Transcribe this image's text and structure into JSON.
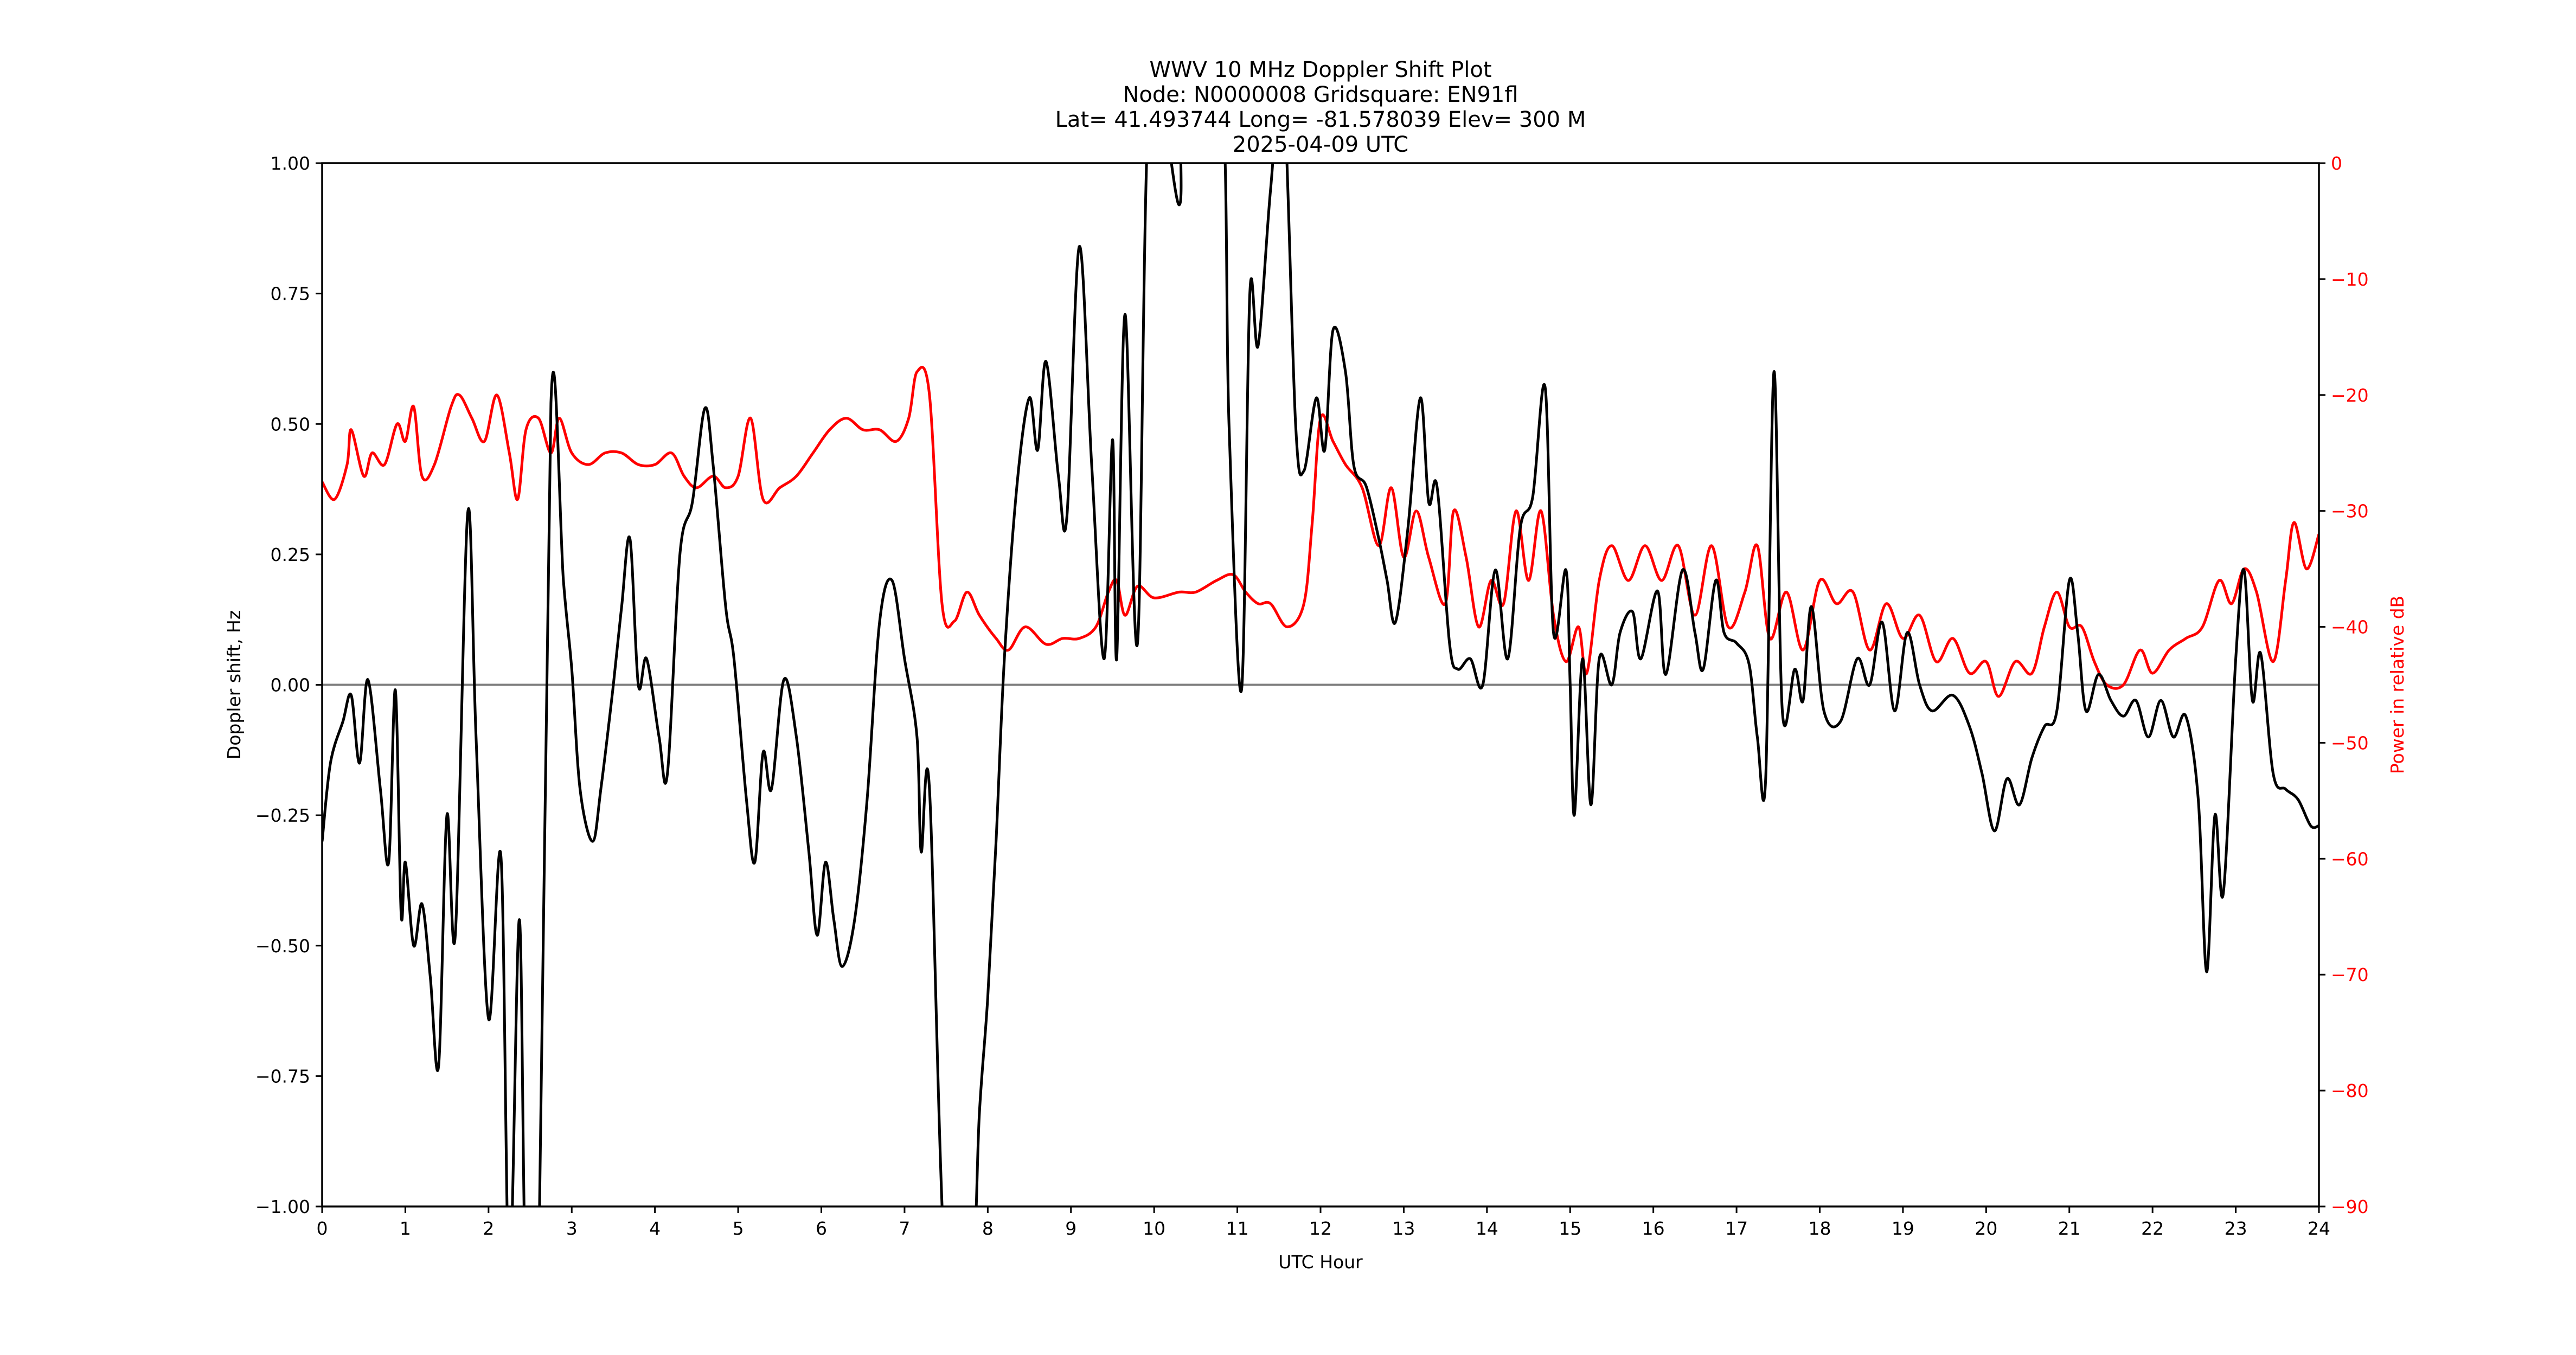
{
  "title": {
    "line1": "WWV 10 MHz Doppler Shift Plot",
    "line2": "Node:  N0000008     Gridsquare:  EN91fl",
    "line3": "Lat= 41.493744    Long=  -81.578039    Elev=  300 M",
    "line4": "2025-04-09  UTC"
  },
  "colors": {
    "doppler": "#000000",
    "power": "#ff0000",
    "zero_line": "#808080",
    "axis": "#000000"
  },
  "chart_data": {
    "type": "line",
    "title": "WWV 10 MHz Doppler Shift Plot",
    "subtitle": [
      "Node:  N0000008     Gridsquare:  EN91fl",
      "Lat= 41.493744    Long=  -81.578039    Elev=  300 M",
      "2025-04-09  UTC"
    ],
    "xlabel": "UTC Hour",
    "ylabel": "Doppler shift, Hz",
    "ylabel_right": "Power in relative dB",
    "xlim": [
      0,
      24
    ],
    "ylim": [
      -1.0,
      1.0
    ],
    "ylim_right": [
      -90,
      0
    ],
    "xticks": [
      "0",
      "1",
      "2",
      "3",
      "4",
      "5",
      "6",
      "7",
      "8",
      "9",
      "10",
      "11",
      "12",
      "13",
      "14",
      "15",
      "16",
      "17",
      "18",
      "19",
      "20",
      "21",
      "22",
      "23",
      "24"
    ],
    "yticks": [
      "1.00",
      "0.75",
      "0.50",
      "0.25",
      "0.00",
      "−0.25",
      "−0.50",
      "−0.75",
      "−1.00"
    ],
    "yticks_right": [
      "0",
      "−10",
      "−20",
      "−30",
      "−40",
      "−50",
      "−60",
      "−70",
      "−80",
      "−90"
    ],
    "grid": false,
    "legend": null,
    "reference_line": {
      "y": 0.0,
      "color": "#808080"
    },
    "series": [
      {
        "name": "Doppler shift",
        "axis": "left",
        "color": "#000000",
        "x": [
          0,
          0.1,
          0.25,
          0.35,
          0.45,
          0.55,
          0.7,
          0.8,
          0.88,
          0.95,
          1.0,
          1.1,
          1.2,
          1.3,
          1.4,
          1.5,
          1.6,
          1.75,
          1.85,
          2.0,
          2.15,
          2.25,
          2.37,
          2.45,
          2.6,
          2.75,
          2.9,
          3.0,
          3.1,
          3.25,
          3.35,
          3.5,
          3.6,
          3.7,
          3.8,
          3.9,
          4.05,
          4.15,
          4.3,
          4.45,
          4.6,
          4.7,
          4.85,
          4.95,
          5.1,
          5.2,
          5.3,
          5.4,
          5.55,
          5.7,
          5.85,
          5.95,
          6.05,
          6.15,
          6.25,
          6.4,
          6.55,
          6.7,
          6.85,
          7.0,
          7.15,
          7.2,
          7.3,
          7.5,
          7.8,
          7.9,
          8.0,
          8.1,
          8.2,
          8.35,
          8.5,
          8.6,
          8.7,
          8.85,
          8.95,
          9.1,
          9.25,
          9.4,
          9.5,
          9.55,
          9.65,
          9.8,
          9.95,
          10.3,
          10.35,
          10.8,
          10.9,
          11.05,
          11.15,
          11.25,
          11.4,
          11.55,
          11.7,
          11.8,
          11.95,
          12.05,
          12.15,
          12.3,
          12.4,
          12.55,
          12.7,
          12.8,
          12.9,
          13.05,
          13.2,
          13.3,
          13.4,
          13.55,
          13.65,
          13.8,
          13.95,
          14.1,
          14.25,
          14.4,
          14.55,
          14.7,
          14.8,
          14.95,
          15.0,
          15.05,
          15.15,
          15.25,
          15.35,
          15.5,
          15.6,
          15.75,
          15.85,
          16.05,
          16.15,
          16.35,
          16.5,
          16.6,
          16.75,
          16.85,
          17.0,
          17.15,
          17.25,
          17.35,
          17.45,
          17.55,
          17.7,
          17.8,
          17.9,
          18.05,
          18.25,
          18.45,
          18.6,
          18.75,
          18.9,
          19.05,
          19.2,
          19.35,
          19.6,
          19.8,
          19.95,
          20.1,
          20.25,
          20.4,
          20.55,
          20.7,
          20.85,
          21.0,
          21.1,
          21.2,
          21.35,
          21.5,
          21.65,
          21.8,
          21.95,
          22.1,
          22.25,
          22.4,
          22.55,
          22.65,
          22.75,
          22.85,
          23.0,
          23.1,
          23.2,
          23.3,
          23.45,
          23.6,
          23.75,
          23.9,
          24.0
        ],
        "values": [
          -0.3,
          -0.15,
          -0.07,
          -0.02,
          -0.15,
          0.01,
          -0.2,
          -0.34,
          -0.01,
          -0.44,
          -0.34,
          -0.5,
          -0.42,
          -0.56,
          -0.73,
          -0.25,
          -0.48,
          0.33,
          -0.1,
          -0.64,
          -0.33,
          -1.0,
          -0.45,
          -1.0,
          -1.0,
          0.54,
          0.2,
          0.03,
          -0.2,
          -0.3,
          -0.2,
          0.0,
          0.15,
          0.28,
          0.0,
          0.05,
          -0.1,
          -0.17,
          0.25,
          0.35,
          0.53,
          0.42,
          0.15,
          0.05,
          -0.22,
          -0.34,
          -0.13,
          -0.2,
          0.01,
          -0.1,
          -0.32,
          -0.48,
          -0.34,
          -0.45,
          -0.54,
          -0.45,
          -0.22,
          0.12,
          0.2,
          0.05,
          -0.1,
          -0.32,
          -0.2,
          -1.0,
          -1.0,
          -0.82,
          -0.6,
          -0.3,
          0.05,
          0.38,
          0.55,
          0.45,
          0.62,
          0.4,
          0.32,
          0.84,
          0.42,
          0.05,
          0.47,
          0.05,
          0.71,
          0.08,
          1.0,
          0.92,
          1.0,
          1.0,
          0.5,
          -0.01,
          0.75,
          0.65,
          0.95,
          1.0,
          0.5,
          0.41,
          0.55,
          0.45,
          0.68,
          0.6,
          0.42,
          0.38,
          0.28,
          0.2,
          0.12,
          0.3,
          0.55,
          0.35,
          0.38,
          0.08,
          0.03,
          0.05,
          0.0,
          0.22,
          0.05,
          0.3,
          0.36,
          0.57,
          0.1,
          0.22,
          0.0,
          -0.25,
          0.05,
          -0.23,
          0.05,
          0.0,
          0.1,
          0.14,
          0.05,
          0.18,
          0.02,
          0.22,
          0.1,
          0.03,
          0.2,
          0.1,
          0.08,
          0.04,
          -0.1,
          -0.18,
          0.6,
          -0.05,
          0.03,
          -0.03,
          0.15,
          -0.05,
          -0.07,
          0.05,
          0.0,
          0.12,
          -0.05,
          0.1,
          0.0,
          -0.05,
          -0.02,
          -0.08,
          -0.17,
          -0.28,
          -0.18,
          -0.23,
          -0.14,
          -0.08,
          -0.05,
          0.2,
          0.1,
          -0.05,
          0.02,
          -0.03,
          -0.06,
          -0.03,
          -0.1,
          -0.03,
          -0.1,
          -0.06,
          -0.22,
          -0.55,
          -0.25,
          -0.4,
          0.05,
          0.22,
          -0.03,
          0.06,
          -0.17,
          -0.2,
          -0.22,
          -0.27,
          -0.27
        ]
      },
      {
        "name": "Power",
        "axis": "right",
        "color": "#ff0000",
        "x": [
          0,
          0.15,
          0.3,
          0.35,
          0.5,
          0.6,
          0.75,
          0.9,
          1.0,
          1.1,
          1.2,
          1.35,
          1.55,
          1.65,
          1.8,
          1.95,
          2.1,
          2.25,
          2.35,
          2.45,
          2.6,
          2.75,
          2.85,
          3.0,
          3.2,
          3.4,
          3.6,
          3.8,
          4.0,
          4.2,
          4.35,
          4.5,
          4.7,
          4.85,
          5.0,
          5.15,
          5.3,
          5.5,
          5.7,
          5.9,
          6.1,
          6.3,
          6.5,
          6.7,
          6.9,
          7.05,
          7.15,
          7.3,
          7.45,
          7.6,
          7.75,
          7.9,
          8.1,
          8.25,
          8.45,
          8.7,
          8.9,
          9.1,
          9.3,
          9.45,
          9.55,
          9.65,
          9.8,
          10.0,
          10.3,
          10.5,
          10.75,
          10.95,
          11.1,
          11.25,
          11.4,
          11.6,
          11.8,
          11.9,
          12.0,
          12.15,
          12.3,
          12.5,
          12.7,
          12.85,
          13.0,
          13.15,
          13.3,
          13.5,
          13.6,
          13.75,
          13.9,
          14.05,
          14.2,
          14.35,
          14.5,
          14.65,
          14.8,
          14.95,
          15.1,
          15.2,
          15.35,
          15.5,
          15.7,
          15.9,
          16.1,
          16.3,
          16.5,
          16.7,
          16.9,
          17.1,
          17.25,
          17.4,
          17.6,
          17.8,
          18.0,
          18.2,
          18.4,
          18.6,
          18.8,
          19.0,
          19.2,
          19.4,
          19.6,
          19.8,
          20.0,
          20.15,
          20.35,
          20.55,
          20.7,
          20.85,
          21.0,
          21.15,
          21.3,
          21.45,
          21.65,
          21.85,
          22.0,
          22.2,
          22.4,
          22.6,
          22.8,
          22.95,
          23.1,
          23.25,
          23.45,
          23.6,
          23.7,
          23.85,
          24.0
        ],
        "values": [
          -27.5,
          -29,
          -26,
          -23,
          -27,
          -25,
          -26,
          -22.5,
          -24,
          -21,
          -27,
          -26,
          -21,
          -20,
          -22,
          -24,
          -20,
          -25,
          -29,
          -23,
          -22,
          -25,
          -22,
          -25,
          -26,
          -25,
          -25,
          -26,
          -26,
          -25,
          -27,
          -28,
          -27,
          -28,
          -27,
          -22,
          -29,
          -28,
          -27,
          -25,
          -23,
          -22,
          -23,
          -23,
          -24,
          -22,
          -18,
          -20,
          -38,
          -39.5,
          -37,
          -39,
          -41,
          -42,
          -40,
          -41.5,
          -41,
          -41,
          -40,
          -37,
          -36,
          -39,
          -36.5,
          -37.5,
          -37,
          -37,
          -36,
          -35.5,
          -37,
          -38,
          -38,
          -40,
          -38,
          -31,
          -22,
          -24,
          -26,
          -28,
          -33,
          -28,
          -34,
          -30,
          -34,
          -38,
          -30,
          -34,
          -40,
          -36,
          -38,
          -30,
          -36,
          -30,
          -39,
          -43,
          -40,
          -44,
          -36,
          -33,
          -36,
          -33,
          -36,
          -33,
          -39,
          -33,
          -40,
          -37,
          -33,
          -41,
          -37,
          -42,
          -36,
          -38,
          -37,
          -42,
          -38,
          -41,
          -39,
          -43,
          -41,
          -44,
          -43,
          -46,
          -43,
          -44,
          -40,
          -37,
          -40,
          -40,
          -43,
          -45,
          -45,
          -42,
          -44,
          -42,
          -41,
          -40,
          -36,
          -38,
          -35,
          -37,
          -43,
          -36,
          -31,
          -35,
          -32
        ]
      }
    ]
  }
}
